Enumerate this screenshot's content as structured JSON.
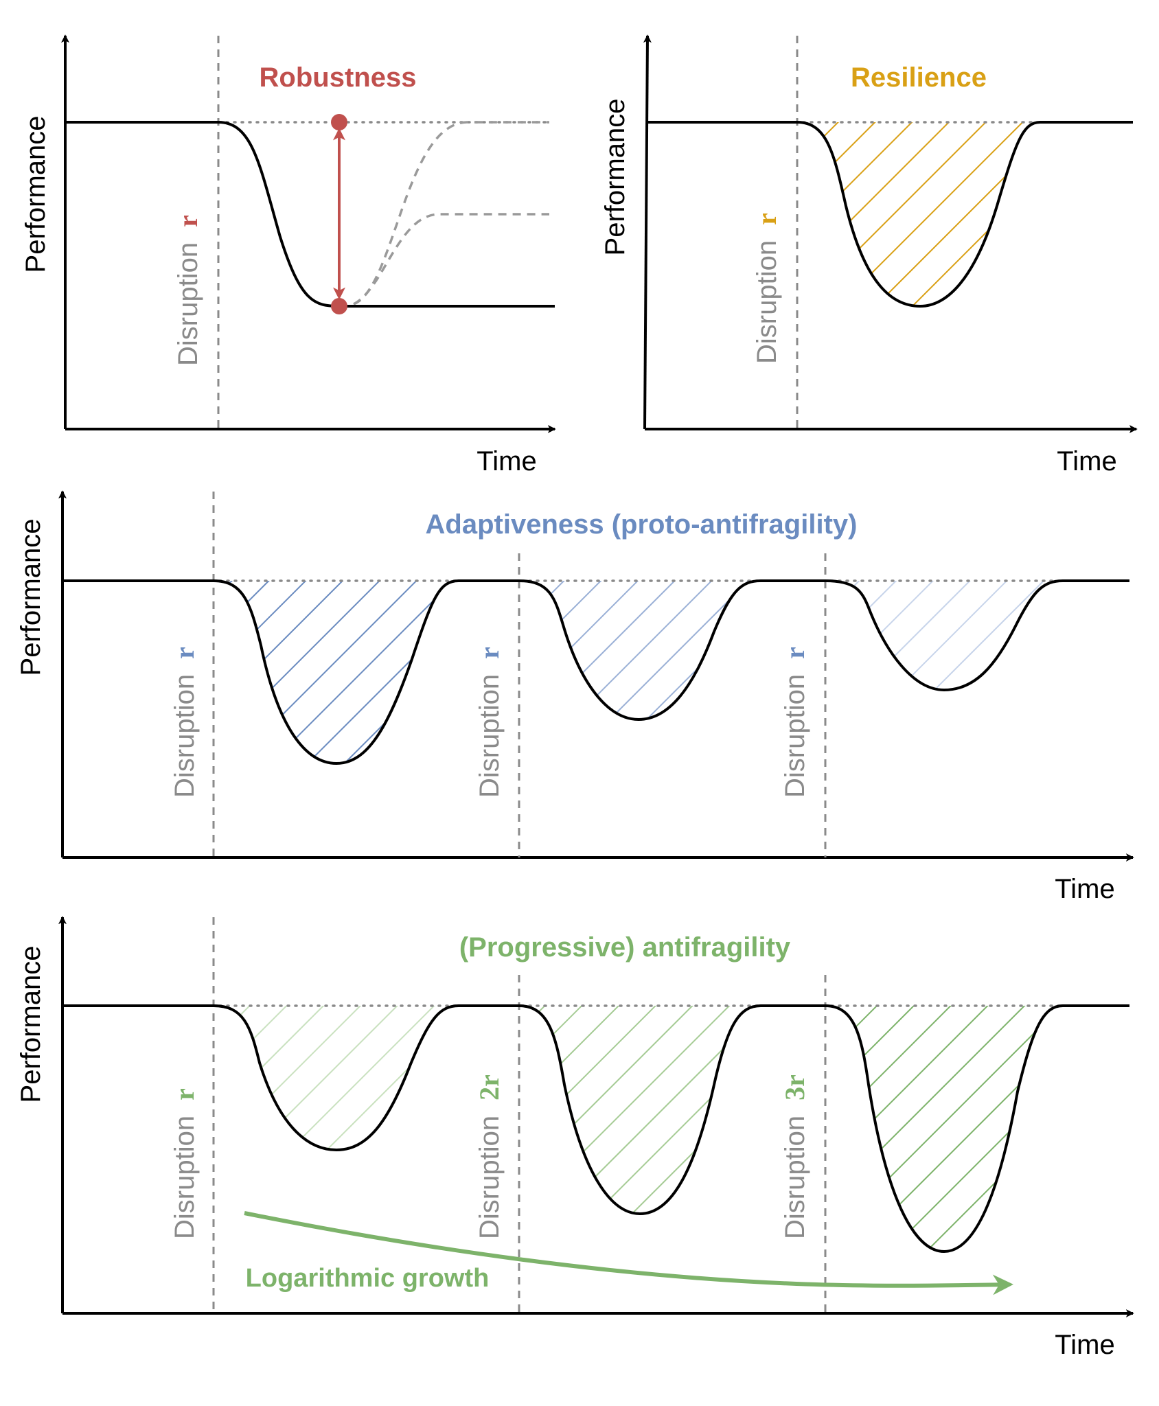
{
  "panels": [
    {
      "id": "robustness",
      "title": "Robustness",
      "color": "#c0504d",
      "ylabel": "Performance",
      "xlabel": "Time",
      "disruptions": [
        {
          "label": "Disruption",
          "magnitude": "r"
        }
      ]
    },
    {
      "id": "resilience",
      "title": "Resilience",
      "color": "#d9a015",
      "ylabel": "Performance",
      "xlabel": "Time",
      "disruptions": [
        {
          "label": "Disruption",
          "magnitude": "r"
        }
      ]
    },
    {
      "id": "adaptiveness",
      "title": "Adaptiveness (proto-antifragility)",
      "color": "#6a8bc0",
      "ylabel": "Performance",
      "xlabel": "Time",
      "disruptions": [
        {
          "label": "Disruption",
          "magnitude": "r"
        },
        {
          "label": "Disruption",
          "magnitude": "r"
        },
        {
          "label": "Disruption",
          "magnitude": "r"
        }
      ]
    },
    {
      "id": "antifragility",
      "title": "(Progressive) antifragility",
      "color": "#7db36a",
      "ylabel": "Performance",
      "xlabel": "Time",
      "disruptions": [
        {
          "label": "Disruption",
          "magnitude": "r"
        },
        {
          "label": "Disruption",
          "magnitude": "2r"
        },
        {
          "label": "Disruption",
          "magnitude": "3r"
        }
      ],
      "growth_label": "Logarithmic growth"
    }
  ]
}
